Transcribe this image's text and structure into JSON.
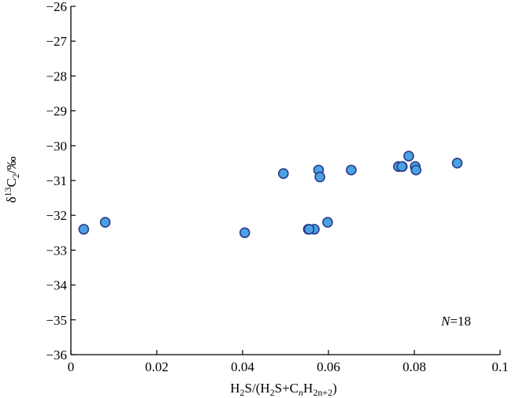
{
  "chart_data": {
    "type": "scatter",
    "title": "",
    "xlabel": {
      "base": "H",
      "sub1": "2",
      "mid": "S/(H",
      "sub2": "2",
      "mid2": "S+C",
      "sub3": "n",
      "mid3": "H",
      "sub4": "2n+2",
      "end": ")"
    },
    "ylabel": {
      "delta": "δ",
      "sup": "13",
      "c": "C",
      "sub": "2",
      "unit": "/‰"
    },
    "xlim": [
      0,
      0.1
    ],
    "ylim": [
      -36,
      -26
    ],
    "x_ticks": [
      "0",
      "0.02",
      "0.04",
      "0.06",
      "0.08",
      "0.1"
    ],
    "y_ticks": [
      "−36",
      "−35",
      "−34",
      "−33",
      "−32",
      "−31",
      "−30",
      "−29",
      "−28",
      "−27",
      "−26"
    ],
    "x_tick_values": [
      0,
      0.02,
      0.04,
      0.06,
      0.08,
      0.1
    ],
    "y_tick_values": [
      -36,
      -35,
      -34,
      -33,
      -32,
      -31,
      -30,
      -29,
      -28,
      -27,
      -26
    ],
    "annotation": {
      "italic": "N",
      "rest": "=18"
    },
    "marker_color": "#4aa3e0",
    "marker_edge": "#2b3a8c",
    "points": [
      {
        "x": 0.003,
        "y": -32.4
      },
      {
        "x": 0.008,
        "y": -32.2
      },
      {
        "x": 0.0405,
        "y": -32.5
      },
      {
        "x": 0.0495,
        "y": -30.8
      },
      {
        "x": 0.0553,
        "y": -32.4
      },
      {
        "x": 0.0567,
        "y": -32.4
      },
      {
        "x": 0.0577,
        "y": -30.7
      },
      {
        "x": 0.058,
        "y": -30.9
      },
      {
        "x": 0.0598,
        "y": -32.2
      },
      {
        "x": 0.0653,
        "y": -30.7
      },
      {
        "x": 0.0763,
        "y": -30.6
      },
      {
        "x": 0.0772,
        "y": -30.6
      },
      {
        "x": 0.0787,
        "y": -30.3
      },
      {
        "x": 0.0802,
        "y": -30.6
      },
      {
        "x": 0.0804,
        "y": -30.7
      },
      {
        "x": 0.09,
        "y": -30.5
      },
      {
        "x": 0.0555,
        "y": -32.4
      },
      {
        "x": 0.0771,
        "y": -30.6
      }
    ]
  }
}
